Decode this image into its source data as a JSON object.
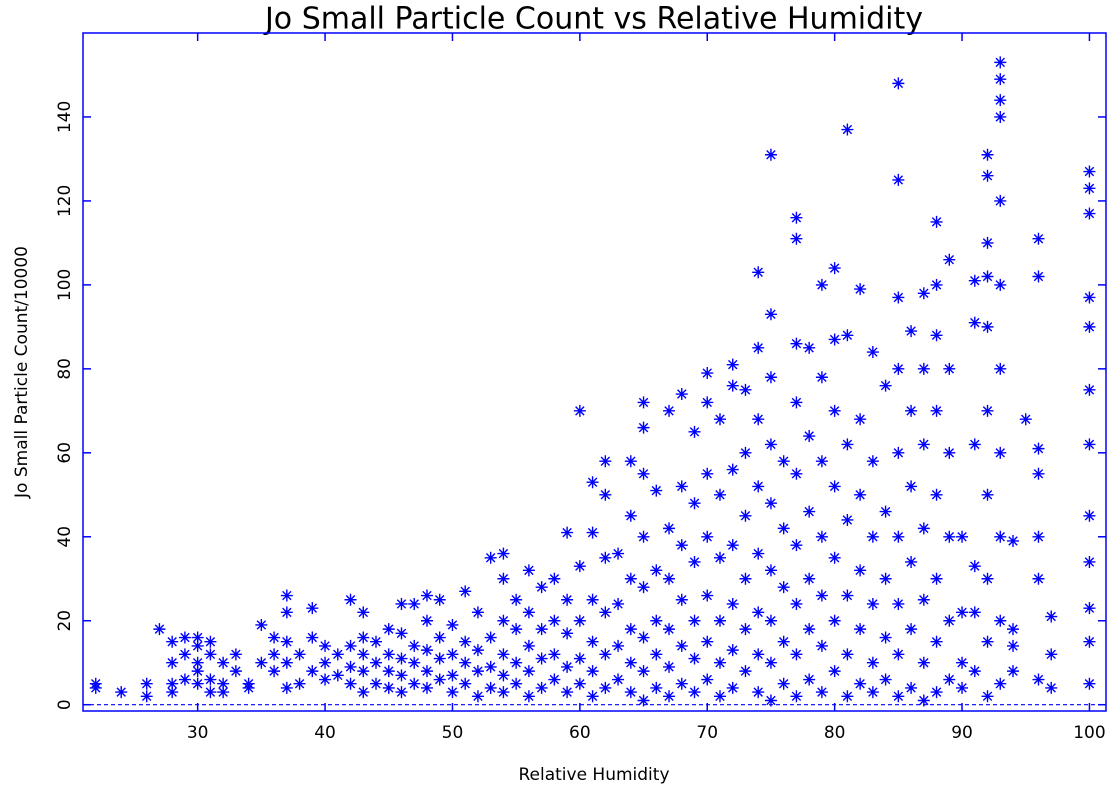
{
  "chart_data": {
    "type": "scatter",
    "title": "Jo Small Particle Count vs Relative Humidity",
    "xlabel": "Relative Humidity",
    "ylabel": "Jo Small Particle Count/10000",
    "xlim": [
      21,
      101.3
    ],
    "ylim": [
      -1.5,
      160
    ],
    "xticks": [
      30,
      40,
      50,
      60,
      70,
      80,
      90,
      100
    ],
    "yticks": [
      0,
      20,
      40,
      60,
      80,
      100,
      120,
      140
    ],
    "hline": 0,
    "color": "#0000ff",
    "marker": "asterisk",
    "x": [
      22,
      22,
      24,
      26,
      26,
      27,
      28,
      28,
      28,
      28,
      29,
      29,
      29,
      30,
      30,
      30,
      30,
      30,
      31,
      31,
      31,
      31,
      32,
      32,
      32,
      33,
      33,
      34,
      34,
      35,
      35,
      36,
      36,
      36,
      37,
      37,
      37,
      37,
      37,
      38,
      38,
      39,
      39,
      39,
      40,
      40,
      40,
      41,
      41,
      42,
      42,
      42,
      42,
      43,
      43,
      43,
      43,
      43,
      44,
      44,
      44,
      45,
      45,
      45,
      45,
      46,
      46,
      46,
      46,
      46,
      47,
      47,
      47,
      47,
      48,
      48,
      48,
      48,
      48,
      49,
      49,
      49,
      49,
      50,
      50,
      50,
      50,
      51,
      51,
      51,
      51,
      52,
      52,
      52,
      52,
      53,
      53,
      53,
      53,
      54,
      54,
      54,
      54,
      54,
      54,
      55,
      55,
      55,
      55,
      56,
      56,
      56,
      56,
      56,
      57,
      57,
      57,
      57,
      58,
      58,
      58,
      58,
      59,
      59,
      59,
      59,
      59,
      60,
      60,
      60,
      60,
      60,
      61,
      61,
      61,
      61,
      61,
      61,
      62,
      62,
      62,
      62,
      62,
      62,
      63,
      63,
      63,
      63,
      64,
      64,
      64,
      64,
      64,
      64,
      65,
      65,
      65,
      65,
      65,
      65,
      65,
      65,
      66,
      66,
      66,
      66,
      66,
      67,
      67,
      67,
      67,
      67,
      67,
      68,
      68,
      68,
      68,
      68,
      68,
      69,
      69,
      69,
      69,
      69,
      69,
      70,
      70,
      70,
      70,
      70,
      70,
      70,
      71,
      71,
      71,
      71,
      71,
      71,
      72,
      72,
      72,
      72,
      72,
      72,
      72,
      73,
      73,
      73,
      73,
      73,
      73,
      74,
      74,
      74,
      74,
      74,
      74,
      74,
      74,
      75,
      75,
      75,
      75,
      75,
      75,
      75,
      75,
      75,
      76,
      76,
      76,
      76,
      76,
      77,
      77,
      77,
      77,
      77,
      77,
      77,
      77,
      77,
      78,
      78,
      78,
      78,
      78,
      78,
      79,
      79,
      79,
      79,
      79,
      79,
      79,
      80,
      80,
      80,
      80,
      80,
      80,
      80,
      81,
      81,
      81,
      81,
      81,
      81,
      81,
      82,
      82,
      82,
      82,
      82,
      82,
      83,
      83,
      83,
      83,
      83,
      83,
      84,
      84,
      84,
      84,
      84,
      85,
      85,
      85,
      85,
      85,
      85,
      85,
      85,
      85,
      86,
      86,
      86,
      86,
      86,
      86,
      87,
      87,
      87,
      87,
      87,
      87,
      87,
      88,
      88,
      88,
      88,
      88,
      88,
      88,
      88,
      89,
      89,
      89,
      89,
      89,
      89,
      90,
      90,
      90,
      90,
      91,
      91,
      91,
      91,
      91,
      91,
      92,
      92,
      92,
      92,
      92,
      92,
      92,
      92,
      92,
      92,
      93,
      93,
      93,
      93,
      93,
      93,
      93,
      93,
      93,
      93,
      93,
      94,
      94,
      94,
      94,
      95,
      96,
      96,
      96,
      96,
      96,
      96,
      96,
      97,
      97,
      97,
      100,
      100,
      100,
      100,
      100,
      100,
      100,
      100,
      100,
      100,
      100,
      100
    ],
    "values": [
      4,
      5,
      3,
      2,
      5,
      18,
      3,
      5,
      10,
      15,
      6,
      12,
      16,
      5,
      8,
      10,
      14,
      16,
      3,
      6,
      12,
      15,
      3,
      5,
      10,
      8,
      12,
      4,
      5,
      10,
      19,
      8,
      12,
      16,
      4,
      10,
      15,
      22,
      26,
      5,
      12,
      8,
      16,
      23,
      6,
      10,
      14,
      7,
      12,
      5,
      9,
      14,
      25,
      3,
      8,
      12,
      16,
      22,
      5,
      10,
      15,
      4,
      8,
      12,
      18,
      3,
      7,
      11,
      17,
      24,
      5,
      10,
      14,
      24,
      4,
      8,
      13,
      20,
      26,
      6,
      11,
      16,
      25,
      3,
      7,
      12,
      19,
      5,
      10,
      15,
      27,
      2,
      8,
      13,
      22,
      4,
      9,
      16,
      35,
      3,
      7,
      12,
      20,
      30,
      36,
      5,
      10,
      18,
      25,
      2,
      8,
      14,
      22,
      32,
      4,
      11,
      18,
      28,
      6,
      12,
      20,
      30,
      3,
      9,
      17,
      25,
      41,
      5,
      11,
      20,
      33,
      70,
      2,
      8,
      15,
      25,
      41,
      53,
      4,
      12,
      22,
      35,
      50,
      58,
      6,
      14,
      24,
      36,
      3,
      10,
      18,
      30,
      45,
      58,
      1,
      8,
      16,
      28,
      40,
      55,
      66,
      72,
      4,
      12,
      20,
      32,
      51,
      2,
      9,
      18,
      30,
      42,
      70,
      5,
      14,
      25,
      38,
      52,
      74,
      3,
      11,
      20,
      34,
      48,
      65,
      6,
      15,
      26,
      40,
      55,
      72,
      79,
      2,
      10,
      20,
      35,
      50,
      68,
      4,
      13,
      24,
      38,
      56,
      76,
      81,
      8,
      18,
      30,
      45,
      60,
      75,
      3,
      12,
      22,
      36,
      52,
      68,
      85,
      103,
      1,
      10,
      20,
      32,
      48,
      62,
      78,
      93,
      131,
      5,
      15,
      28,
      42,
      58,
      2,
      12,
      24,
      38,
      55,
      72,
      86,
      111,
      116,
      6,
      18,
      30,
      46,
      64,
      85,
      3,
      14,
      26,
      40,
      58,
      78,
      100,
      8,
      20,
      35,
      52,
      70,
      87,
      104,
      2,
      12,
      26,
      44,
      62,
      88,
      137,
      5,
      18,
      32,
      50,
      68,
      99,
      3,
      10,
      24,
      40,
      58,
      84,
      6,
      16,
      30,
      46,
      76,
      2,
      12,
      24,
      40,
      60,
      80,
      97,
      125,
      148,
      4,
      18,
      34,
      52,
      70,
      89,
      1,
      10,
      25,
      42,
      62,
      80,
      98,
      3,
      15,
      30,
      50,
      70,
      88,
      100,
      115,
      6,
      20,
      40,
      60,
      80,
      106,
      4,
      10,
      22,
      40,
      8,
      22,
      33,
      62,
      91,
      101,
      2,
      15,
      30,
      50,
      70,
      90,
      102,
      110,
      126,
      131,
      5,
      20,
      40,
      60,
      80,
      100,
      120,
      140,
      144,
      149,
      153,
      8,
      14,
      18,
      39,
      68,
      6,
      30,
      40,
      55,
      61,
      102,
      111,
      4,
      12,
      21,
      5,
      15,
      23,
      34,
      45,
      62,
      75,
      90,
      97,
      117,
      123,
      127
    ]
  }
}
